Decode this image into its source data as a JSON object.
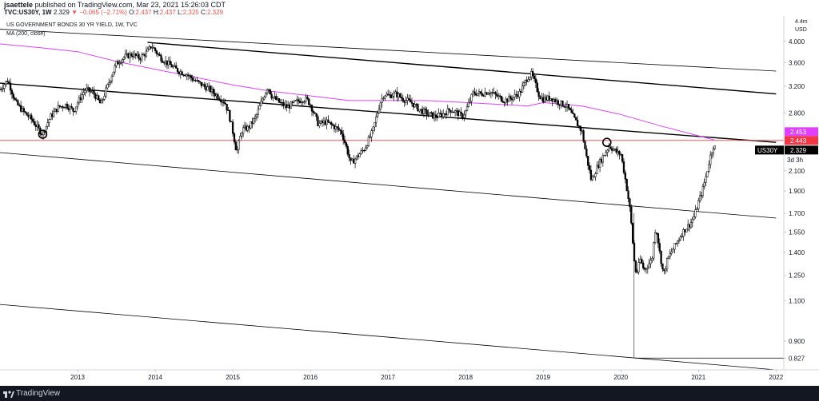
{
  "header": {
    "publisher_user": "jsaettele",
    "publisher_text": " published on TradingView.com, Mar 23, 2021 15:26:03 CDT",
    "symbol": "TVC:US30Y, 1W",
    "last": "2.329",
    "change": "−0.065 (−2.71%)",
    "o_label": "O:",
    "o_value": "2.437",
    "h_label": "H:",
    "h_value": "2.437",
    "l_label": "L:",
    "l_value": "2.325",
    "c_label": "C:",
    "c_value": "2.329"
  },
  "chart_data": {
    "type": "candlestick",
    "title": "US GOVERNMENT BONDS 30 YR YIELD, 1W, TVC",
    "subtitle": "MA (200, close)",
    "y_axis_label": "USD",
    "y_axis_top_label": "4.4m",
    "y_ticks": [
      "4.000",
      "3.600",
      "3.200",
      "2.800",
      "2.100",
      "1.900",
      "1.700",
      "1.550",
      "1.400",
      "1.250",
      "1.100",
      "0.900",
      "0.827"
    ],
    "y_scale": "log",
    "y_range": [
      0.78,
      4.45
    ],
    "x_ticks": [
      "2013",
      "2014",
      "2015",
      "2016",
      "2017",
      "2018",
      "2019",
      "2020",
      "2021",
      "2022"
    ],
    "x_range": [
      2012.0,
      2022.1
    ],
    "price_path": [
      [
        2012.0,
        3.15
      ],
      [
        2012.1,
        3.3
      ],
      [
        2012.2,
        2.95
      ],
      [
        2012.3,
        2.82
      ],
      [
        2012.4,
        2.72
      ],
      [
        2012.5,
        2.58
      ],
      [
        2012.55,
        2.52
      ],
      [
        2012.65,
        2.75
      ],
      [
        2012.75,
        2.88
      ],
      [
        2012.85,
        2.92
      ],
      [
        2012.95,
        2.83
      ],
      [
        2013.0,
        2.95
      ],
      [
        2013.1,
        3.15
      ],
      [
        2013.2,
        3.1
      ],
      [
        2013.3,
        2.92
      ],
      [
        2013.4,
        3.25
      ],
      [
        2013.5,
        3.58
      ],
      [
        2013.6,
        3.7
      ],
      [
        2013.7,
        3.75
      ],
      [
        2013.8,
        3.68
      ],
      [
        2013.9,
        3.8
      ],
      [
        2013.95,
        3.92
      ],
      [
        2014.05,
        3.72
      ],
      [
        2014.1,
        3.65
      ],
      [
        2014.2,
        3.55
      ],
      [
        2014.3,
        3.45
      ],
      [
        2014.4,
        3.4
      ],
      [
        2014.5,
        3.3
      ],
      [
        2014.6,
        3.22
      ],
      [
        2014.7,
        3.15
      ],
      [
        2014.8,
        3.05
      ],
      [
        2014.9,
        2.95
      ],
      [
        2014.95,
        2.78
      ],
      [
        2015.0,
        2.55
      ],
      [
        2015.05,
        2.3
      ],
      [
        2015.12,
        2.58
      ],
      [
        2015.2,
        2.6
      ],
      [
        2015.3,
        2.75
      ],
      [
        2015.4,
        3.05
      ],
      [
        2015.45,
        3.2
      ],
      [
        2015.5,
        3.05
      ],
      [
        2015.6,
        2.95
      ],
      [
        2015.7,
        2.88
      ],
      [
        2015.8,
        2.95
      ],
      [
        2015.9,
        3.0
      ],
      [
        2015.95,
        3.0
      ],
      [
        2016.0,
        2.92
      ],
      [
        2016.1,
        2.65
      ],
      [
        2016.2,
        2.68
      ],
      [
        2016.3,
        2.62
      ],
      [
        2016.4,
        2.55
      ],
      [
        2016.45,
        2.4
      ],
      [
        2016.52,
        2.18
      ],
      [
        2016.6,
        2.25
      ],
      [
        2016.7,
        2.35
      ],
      [
        2016.8,
        2.55
      ],
      [
        2016.9,
        2.95
      ],
      [
        2016.95,
        3.08
      ],
      [
        2017.0,
        3.05
      ],
      [
        2017.1,
        3.08
      ],
      [
        2017.2,
        3.0
      ],
      [
        2017.3,
        2.95
      ],
      [
        2017.4,
        2.85
      ],
      [
        2017.5,
        2.8
      ],
      [
        2017.6,
        2.75
      ],
      [
        2017.7,
        2.78
      ],
      [
        2017.8,
        2.85
      ],
      [
        2017.9,
        2.8
      ],
      [
        2017.95,
        2.75
      ],
      [
        2018.0,
        2.82
      ],
      [
        2018.1,
        3.1
      ],
      [
        2018.2,
        3.08
      ],
      [
        2018.3,
        3.12
      ],
      [
        2018.4,
        3.05
      ],
      [
        2018.5,
        2.98
      ],
      [
        2018.6,
        3.02
      ],
      [
        2018.7,
        3.1
      ],
      [
        2018.8,
        3.35
      ],
      [
        2018.85,
        3.4
      ],
      [
        2018.95,
        3.05
      ],
      [
        2019.0,
        3.0
      ],
      [
        2019.1,
        3.02
      ],
      [
        2019.2,
        2.95
      ],
      [
        2019.3,
        2.9
      ],
      [
        2019.4,
        2.72
      ],
      [
        2019.5,
        2.55
      ],
      [
        2019.55,
        2.28
      ],
      [
        2019.62,
        2.0
      ],
      [
        2019.7,
        2.15
      ],
      [
        2019.8,
        2.3
      ],
      [
        2019.85,
        2.38
      ],
      [
        2019.95,
        2.3
      ],
      [
        2020.0,
        2.28
      ],
      [
        2020.05,
        2.05
      ],
      [
        2020.12,
        1.72
      ],
      [
        2020.17,
        1.35
      ],
      [
        2020.2,
        1.25
      ],
      [
        2020.25,
        1.35
      ],
      [
        2020.3,
        1.28
      ],
      [
        2020.4,
        1.35
      ],
      [
        2020.45,
        1.6
      ],
      [
        2020.5,
        1.4
      ],
      [
        2020.55,
        1.25
      ],
      [
        2020.6,
        1.35
      ],
      [
        2020.7,
        1.45
      ],
      [
        2020.8,
        1.55
      ],
      [
        2020.9,
        1.62
      ],
      [
        2020.95,
        1.68
      ],
      [
        2021.0,
        1.8
      ],
      [
        2021.05,
        1.9
      ],
      [
        2021.1,
        2.05
      ],
      [
        2021.15,
        2.25
      ],
      [
        2021.2,
        2.4
      ],
      [
        2021.22,
        2.33
      ]
    ],
    "candle_color": "#000000",
    "series": [
      {
        "name": "MA (200, close)",
        "color": "#e040fb",
        "values": [
          [
            2012.0,
            3.95
          ],
          [
            2012.5,
            3.88
          ],
          [
            2013.0,
            3.8
          ],
          [
            2013.5,
            3.62
          ],
          [
            2014.0,
            3.48
          ],
          [
            2014.5,
            3.35
          ],
          [
            2015.0,
            3.22
          ],
          [
            2015.5,
            3.12
          ],
          [
            2016.0,
            3.05
          ],
          [
            2016.5,
            2.98
          ],
          [
            2017.0,
            2.98
          ],
          [
            2017.5,
            2.98
          ],
          [
            2018.0,
            2.95
          ],
          [
            2018.5,
            2.92
          ],
          [
            2018.8,
            2.9
          ],
          [
            2019.0,
            2.95
          ],
          [
            2019.5,
            2.9
          ],
          [
            2020.0,
            2.78
          ],
          [
            2020.5,
            2.63
          ],
          [
            2021.0,
            2.5
          ],
          [
            2021.2,
            2.45
          ]
        ]
      }
    ],
    "horizontal_lines": [
      {
        "value": 2.443,
        "color": "#f23645",
        "label": "2.443"
      },
      {
        "value": 0.827,
        "color": "#000000",
        "label": "0.827",
        "from_x": 2020.17
      }
    ],
    "trend_lines": [
      {
        "color": "#000000",
        "from": [
          2012.0,
          4.25
        ],
        "to": [
          2022.0,
          3.45
        ],
        "width": 0.8
      },
      {
        "color": "#000000",
        "from": [
          2013.9,
          3.98
        ],
        "to": [
          2022.0,
          3.08
        ],
        "width": 1.4
      },
      {
        "color": "#000000",
        "from": [
          2012.0,
          3.25
        ],
        "to": [
          2022.0,
          2.42
        ],
        "width": 1.4
      },
      {
        "color": "#000000",
        "from": [
          2012.0,
          2.3
        ],
        "to": [
          2022.0,
          1.66
        ],
        "width": 0.8
      },
      {
        "color": "#000000",
        "from": [
          2012.0,
          1.08
        ],
        "to": [
          2022.0,
          0.78
        ],
        "width": 0.8
      }
    ],
    "markers": [
      {
        "x": 2012.55,
        "y": 2.52,
        "shape": "circle"
      },
      {
        "x": 2019.82,
        "y": 2.42,
        "shape": "circle"
      }
    ],
    "price_labels": [
      {
        "value": 2.453,
        "text": "2.453",
        "bg": "#e040fb"
      },
      {
        "value": 2.443,
        "text": "2.443",
        "bg": "#f23645"
      },
      {
        "value": 2.329,
        "text": "2.329",
        "bg": "#000000",
        "symbol": "US30Y",
        "countdown": "3d 3h"
      }
    ]
  },
  "footer": {
    "brand": "TradingView"
  }
}
